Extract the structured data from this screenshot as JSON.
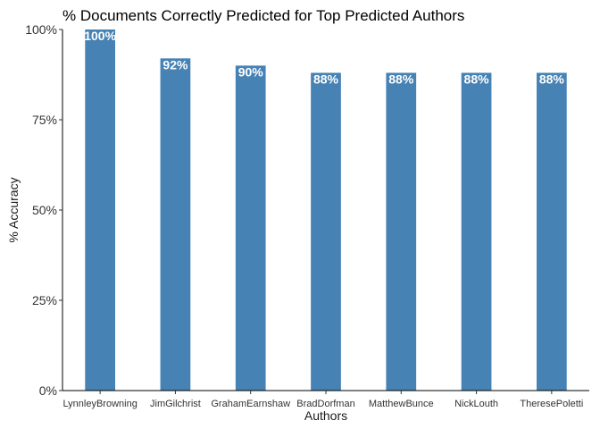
{
  "chart_data": {
    "type": "bar",
    "title": "% Documents Correctly Predicted for Top Predicted Authors",
    "xlabel": "Authors",
    "ylabel": "% Accuracy",
    "categories": [
      "LynnleyBrowning",
      "JimGilchrist",
      "GrahamEarnshaw",
      "BradDorfman",
      "MatthewBunce",
      "NickLouth",
      "TheresePoletti"
    ],
    "values": [
      100,
      92,
      90,
      88,
      88,
      88,
      88
    ],
    "data_labels": [
      "100%",
      "92%",
      "90%",
      "88%",
      "88%",
      "88%",
      "88%"
    ],
    "ylim": [
      0,
      100
    ],
    "yticks": [
      0,
      25,
      50,
      75,
      100
    ],
    "ytick_labels": [
      "0%",
      "25%",
      "50%",
      "75%",
      "100%"
    ],
    "grid": false,
    "legend": "none",
    "bar_color": "#4682B4",
    "data_label_color": "#FFFFFF"
  }
}
